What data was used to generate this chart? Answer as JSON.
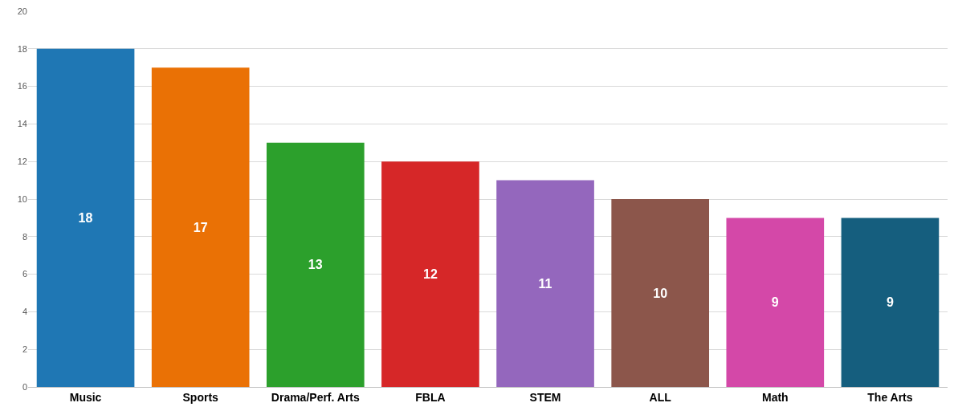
{
  "chart_data": {
    "type": "bar",
    "categories": [
      "Music",
      "Sports",
      "Drama/Perf. Arts",
      "FBLA",
      "STEM",
      "ALL",
      "Math",
      "The Arts"
    ],
    "values": [
      18,
      17,
      13,
      12,
      11,
      10,
      9,
      9
    ],
    "colors": [
      "#1f77b4",
      "#ea7105",
      "#2ca02c",
      "#d62728",
      "#9467bd",
      "#8c564b",
      "#d448a8",
      "#155e7e"
    ],
    "ylim": [
      0,
      20
    ],
    "yticks": [
      0,
      2,
      4,
      6,
      8,
      10,
      12,
      14,
      16,
      18,
      20
    ],
    "grid": "y",
    "data_labels": true
  }
}
